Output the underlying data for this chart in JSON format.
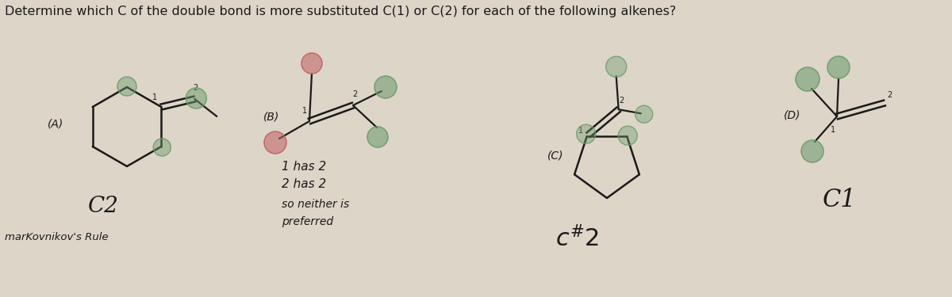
{
  "background_color": "#ddd5c8",
  "title": "Determine which C of the double bond is more substituted C(1) or C(2) for each of the following alkenes?",
  "title_fontsize": 11.5,
  "answer_A": "C2",
  "answer_B_line1": "1 has 2",
  "answer_B_line2": "2 has 2",
  "answer_B_line3": "so neither is",
  "answer_B_line4": "preferred",
  "answer_C": "C#2",
  "answer_D": "C1",
  "markovnikov": "marKovnikov's Rule",
  "label_A": "(A)",
  "label_B": "(B)",
  "label_C": "(C)",
  "label_D": "(D)",
  "dark_color": "#1a1a1a",
  "green_circle_color": "#6a9a6a",
  "red_circle_color": "#c06060",
  "circle_alpha": 0.55,
  "lw": 1.6
}
